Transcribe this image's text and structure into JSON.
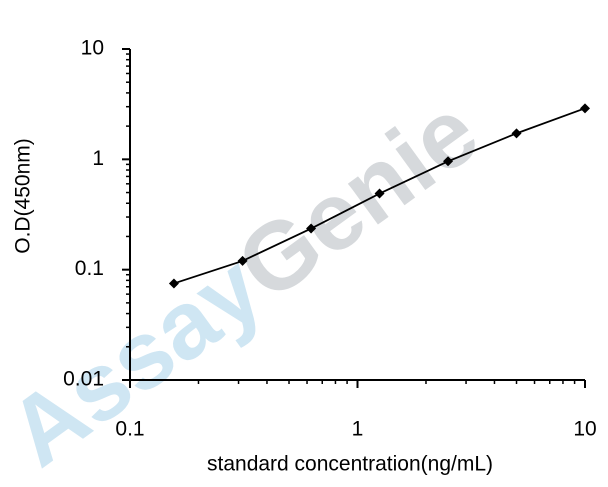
{
  "chart_data": {
    "type": "line",
    "watermark": [
      "Assay",
      "Genie"
    ],
    "x_label": "standard concentration(ng/mL)",
    "y_label": "O.D(450nm)",
    "x": [
      0.156,
      0.3125,
      0.625,
      1.25,
      2.5,
      5,
      10
    ],
    "series": [
      {
        "color": "#000000",
        "values": [
          0.075,
          0.12,
          0.236,
          0.49,
          0.96,
          1.72,
          2.9
        ]
      }
    ],
    "xlim": [
      0.1,
      10
    ],
    "xticks": [
      0.1,
      1,
      10
    ],
    "ylim": [
      0.01,
      10
    ],
    "yticks": [
      0.01,
      0.1,
      1,
      10
    ],
    "xscale": "log",
    "yscale": "log"
  }
}
